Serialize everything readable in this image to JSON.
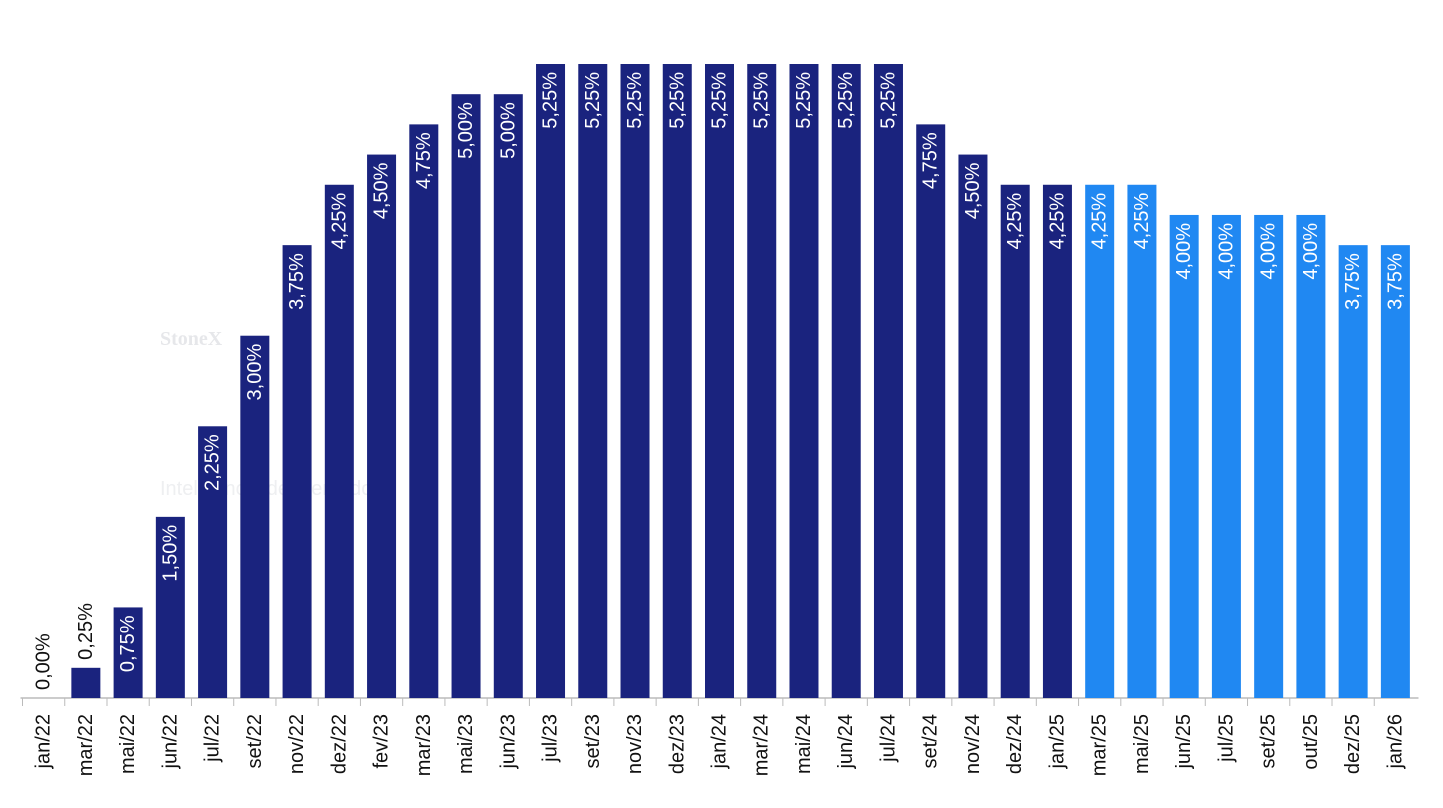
{
  "chart_data": {
    "type": "bar",
    "watermark": {
      "brand": "StoneX",
      "tagline": "Inteligência de Mercado"
    },
    "categories": [
      "jan/22",
      "mar/22",
      "mai/22",
      "jun/22",
      "jul/22",
      "set/22",
      "nov/22",
      "dez/22",
      "fev/23",
      "mar/23",
      "mai/23",
      "jun/23",
      "jul/23",
      "set/23",
      "nov/23",
      "dez/23",
      "jan/24",
      "mar/24",
      "mai/24",
      "jun/24",
      "jul/24",
      "set/24",
      "nov/24",
      "dez/24",
      "jan/25",
      "mar/25",
      "mai/25",
      "jun/25",
      "jul/25",
      "set/25",
      "out/25",
      "dez/25",
      "jan/26"
    ],
    "values": [
      0,
      0.25,
      0.75,
      1.5,
      2.25,
      3,
      3.75,
      4.25,
      4.5,
      4.75,
      5,
      5,
      5.25,
      5.25,
      5.25,
      5.25,
      5.25,
      5.25,
      5.25,
      5.25,
      5.25,
      4.75,
      4.5,
      4.25,
      4.25,
      4.25,
      4.25,
      4,
      4,
      4,
      4,
      3.75,
      3.75
    ],
    "value_labels": [
      "0,00%",
      "0,25%",
      "0,75%",
      "1,50%",
      "2,25%",
      "3,00%",
      "3,75%",
      "4,25%",
      "4,50%",
      "4,75%",
      "5,00%",
      "5,00%",
      "5,25%",
      "5,25%",
      "5,25%",
      "5,25%",
      "5,25%",
      "5,25%",
      "5,25%",
      "5,25%",
      "5,25%",
      "4,75%",
      "4,50%",
      "4,25%",
      "4,25%",
      "4,25%",
      "4,25%",
      "4,00%",
      "4,00%",
      "4,00%",
      "4,00%",
      "3,75%",
      "3,75%"
    ],
    "colors": [
      "#1a237e",
      "#1a237e",
      "#1a237e",
      "#1a237e",
      "#1a237e",
      "#1a237e",
      "#1a237e",
      "#1a237e",
      "#1a237e",
      "#1a237e",
      "#1a237e",
      "#1a237e",
      "#1a237e",
      "#1a237e",
      "#1a237e",
      "#1a237e",
      "#1a237e",
      "#1a237e",
      "#1a237e",
      "#1a237e",
      "#1a237e",
      "#1a237e",
      "#1a237e",
      "#1a237e",
      "#1a237e",
      "#2088f2",
      "#2088f2",
      "#2088f2",
      "#2088f2",
      "#2088f2",
      "#2088f2",
      "#2088f2",
      "#2088f2"
    ],
    "ylim": [
      0,
      5.25
    ]
  }
}
